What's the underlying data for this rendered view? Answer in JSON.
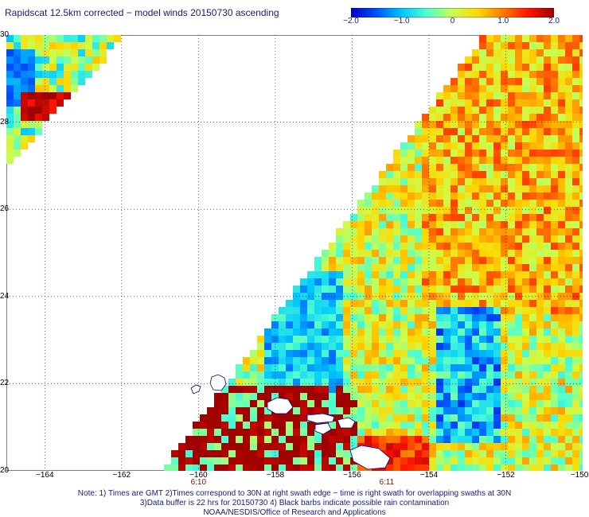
{
  "title": "Rapidscat 12.5km corrected − model winds 20150730 ascending",
  "colorbar": {
    "ticks": [
      {
        "label": "−2.0",
        "value": -2.0
      },
      {
        "label": "−1.0",
        "value": -1.0
      },
      {
        "label": "0",
        "value": 0
      },
      {
        "label": "1.0",
        "value": 1.0
      },
      {
        "label": "2.0",
        "value": 2.0
      }
    ],
    "range": [
      -2.0,
      2.0
    ],
    "colors": [
      "#0000c8",
      "#0050ff",
      "#00c8ff",
      "#50ffd0",
      "#c8ff50",
      "#ffd700",
      "#ff7800",
      "#ff1400",
      "#a00000"
    ]
  },
  "map": {
    "lon_range": [
      -165,
      -150
    ],
    "lat_range": [
      20,
      30
    ],
    "lat_ticks": [
      {
        "label": "30",
        "value": 30
      },
      {
        "label": "28",
        "value": 28
      },
      {
        "label": "26",
        "value": 26
      },
      {
        "label": "24",
        "value": 24
      },
      {
        "label": "22",
        "value": 22
      },
      {
        "label": "20",
        "value": 20
      }
    ],
    "lon_ticks": [
      {
        "label": "−164",
        "value": -164
      },
      {
        "label": "−162",
        "value": -162
      },
      {
        "label": "−160",
        "value": -160
      },
      {
        "label": "−158",
        "value": -158
      },
      {
        "label": "−156",
        "value": -156
      },
      {
        "label": "−154",
        "value": -154
      },
      {
        "label": "−152",
        "value": -152
      },
      {
        "label": "−150",
        "value": -150
      }
    ],
    "time_labels": [
      {
        "label": "6:10",
        "lon": -160
      },
      {
        "label": "6:11",
        "lon": -155.1
      }
    ]
  },
  "notes": {
    "line1": "Note: 1) Times are GMT 2)Times correspond to 30N at right swath edge − time is right swath for overlapping swaths at 30N",
    "line2": "3)Data buffer is 22 hrs for 20150730 4) Black barbs indicate possible rain contamination",
    "line3": "NOAA/NESDIS/Office of Research and Applications"
  }
}
